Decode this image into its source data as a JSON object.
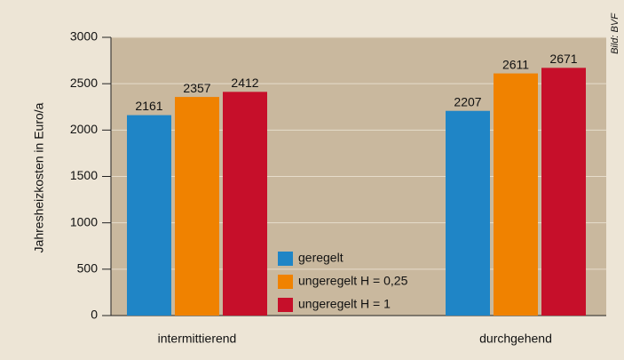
{
  "chart_data": {
    "type": "bar",
    "ylabel": "Jahresheizkosten in Euro/a",
    "source": "Bild: BVF",
    "categories": [
      "intermittierend",
      "durchgehend"
    ],
    "series": [
      {
        "name": "geregelt",
        "color": "#1f85c6",
        "values": [
          2161,
          2207
        ]
      },
      {
        "name": "ungeregelt H = 0,25",
        "color": "#f08200",
        "values": [
          2357,
          2611
        ]
      },
      {
        "name": "ungeregelt H = 1",
        "color": "#c60f2a",
        "values": [
          2412,
          2671
        ]
      }
    ],
    "ylim": [
      0,
      3000
    ],
    "yticks": [
      0,
      500,
      1000,
      1500,
      2000,
      2500,
      3000
    ],
    "grid": true,
    "legend": "center"
  }
}
